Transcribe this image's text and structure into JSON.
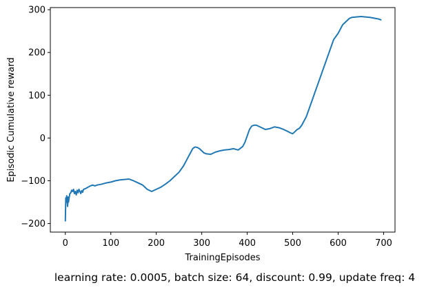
{
  "chart_data": {
    "type": "line",
    "xlabel": "TrainingEpisodes",
    "ylabel": "Episodic Cumulative reward",
    "xlim": [
      -33,
      725
    ],
    "ylim": [
      -220,
      305
    ],
    "xticks": [
      0,
      100,
      200,
      300,
      400,
      500,
      600,
      700
    ],
    "yticks": [
      -200,
      -100,
      0,
      100,
      200,
      300
    ],
    "grid": false,
    "series": [
      {
        "color": "#1f77b4",
        "x": [
          0,
          1,
          2,
          3,
          4,
          5,
          6,
          7,
          8,
          10,
          12,
          14,
          16,
          18,
          20,
          22,
          24,
          26,
          28,
          30,
          32,
          34,
          36,
          38,
          40,
          45,
          50,
          55,
          60,
          65,
          70,
          80,
          90,
          100,
          110,
          120,
          130,
          140,
          150,
          160,
          170,
          180,
          190,
          200,
          210,
          220,
          230,
          240,
          250,
          260,
          265,
          270,
          275,
          280,
          285,
          290,
          295,
          300,
          305,
          310,
          320,
          330,
          340,
          350,
          360,
          370,
          380,
          390,
          395,
          400,
          405,
          410,
          415,
          420,
          430,
          440,
          450,
          460,
          470,
          480,
          490,
          495,
          500,
          505,
          510,
          515,
          520,
          530,
          540,
          550,
          560,
          570,
          580,
          590,
          600,
          610,
          620,
          625,
          630,
          640,
          650,
          660,
          670,
          680,
          690,
          695
        ],
        "y": [
          -195,
          -140,
          -150,
          -135,
          -145,
          -160,
          -138,
          -150,
          -142,
          -130,
          -128,
          -122,
          -125,
          -120,
          -130,
          -125,
          -133,
          -122,
          -128,
          -120,
          -125,
          -130,
          -123,
          -127,
          -120,
          -118,
          -115,
          -112,
          -110,
          -112,
          -110,
          -108,
          -105,
          -103,
          -100,
          -98,
          -97,
          -96,
          -100,
          -105,
          -110,
          -120,
          -125,
          -120,
          -115,
          -108,
          -100,
          -90,
          -80,
          -65,
          -55,
          -45,
          -35,
          -25,
          -21,
          -22,
          -25,
          -30,
          -35,
          -37,
          -38,
          -33,
          -30,
          -28,
          -27,
          -25,
          -28,
          -20,
          -10,
          5,
          20,
          28,
          30,
          30,
          25,
          20,
          22,
          26,
          24,
          20,
          15,
          12,
          10,
          15,
          20,
          23,
          30,
          50,
          80,
          110,
          140,
          170,
          200,
          230,
          245,
          265,
          275,
          280,
          282,
          283,
          284,
          283,
          282,
          280,
          278,
          276
        ]
      }
    ]
  },
  "caption": "learning rate: 0.0005, batch size: 64, discount: 0.99, update freq: 4"
}
